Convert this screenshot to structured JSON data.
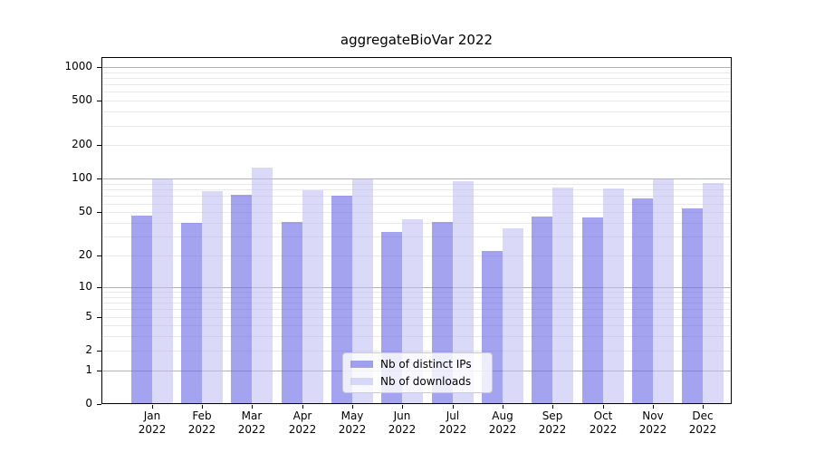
{
  "chart_data": {
    "type": "bar",
    "title": "aggregateBioVar 2022",
    "categories": [
      "Jan",
      "Feb",
      "Mar",
      "Apr",
      "May",
      "Jun",
      "Jul",
      "Aug",
      "Sep",
      "Oct",
      "Nov",
      "Dec"
    ],
    "category_sublabel": "2022",
    "series": [
      {
        "name": "Nb of distinct IPs",
        "values": [
          47,
          40,
          72,
          41,
          71,
          33,
          41,
          22,
          46,
          45,
          67,
          54
        ],
        "fill": "rgba(102,102,230,0.60)",
        "hex_on_white": "#a3a3f0"
      },
      {
        "name": "Nb of downloads",
        "values": [
          100,
          77,
          126,
          79,
          100,
          43,
          95,
          36,
          83,
          82,
          100,
          92
        ],
        "fill": "rgba(187,187,242,0.55)",
        "hex_on_white": "#d9d9f8"
      }
    ],
    "xlabel": "",
    "ylabel": "",
    "ylim": [
      0,
      1225
    ],
    "yscale": "log10(value+1)",
    "y_ticks": [
      1000,
      500,
      200,
      100,
      50,
      20,
      10,
      5,
      2,
      1,
      0
    ],
    "y_tick_labels": [
      "1000",
      "500",
      "200",
      "100",
      "50",
      "20",
      "10",
      "5",
      "2",
      "1",
      "0"
    ],
    "y_major_gridlines": [
      1,
      10,
      100,
      1000
    ],
    "grid": true,
    "legend_position": "inside-bottom-center"
  },
  "colors": {
    "background": "#ffffff",
    "frame": "#000000",
    "text": "#000000",
    "grid_minor": "#e9e9e9",
    "grid_major": "#b3b3b3",
    "legend_border": "#cccccc"
  }
}
